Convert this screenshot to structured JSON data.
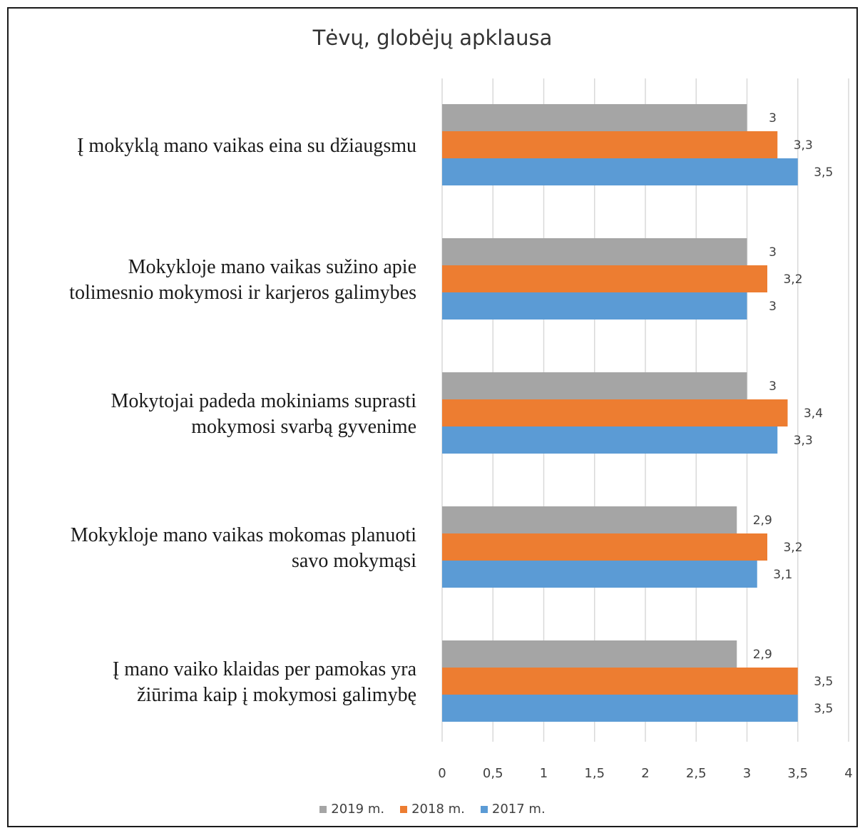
{
  "chart_data": {
    "type": "bar",
    "orientation": "horizontal",
    "title": "Tėvų, globėjų apklausa",
    "xlabel": "",
    "ylabel": "",
    "xlim": [
      0,
      4
    ],
    "xticks": [
      "0",
      "0,5",
      "1",
      "1,5",
      "2",
      "2,5",
      "3",
      "3,5",
      "4"
    ],
    "grid": true,
    "legend_position": "bottom",
    "categories": [
      [
        "Į mokyklą mano vaikas eina su džiaugsmu"
      ],
      [
        "Mokykloje mano vaikas sužino apie",
        "tolimesnio mokymosi ir karjeros galimybes"
      ],
      [
        "Mokytojai padeda mokiniams suprasti",
        "mokymosi svarbą gyvenime"
      ],
      [
        "Mokykloje mano vaikas mokomas planuoti",
        "savo mokymąsi"
      ],
      [
        "Į mano vaiko klaidas per pamokas yra",
        "žiūrima kaip į mokymosi galimybę"
      ]
    ],
    "series": [
      {
        "name": "2019 m.",
        "color": "#a5a5a5",
        "values": [
          3,
          3,
          3,
          2.9,
          2.9
        ],
        "labels": [
          "3",
          "3",
          "3",
          "2,9",
          "2,9"
        ]
      },
      {
        "name": "2018 m.",
        "color": "#ed7d31",
        "values": [
          3.3,
          3.2,
          3.4,
          3.2,
          3.5
        ],
        "labels": [
          "3,3",
          "3,2",
          "3,4",
          "3,2",
          "3,5"
        ]
      },
      {
        "name": "2017 m.",
        "color": "#5b9bd5",
        "values": [
          3.5,
          3,
          3.3,
          3.1,
          3.5
        ],
        "labels": [
          "3,5",
          "3",
          "3,3",
          "3,1",
          "3,5"
        ]
      }
    ]
  }
}
